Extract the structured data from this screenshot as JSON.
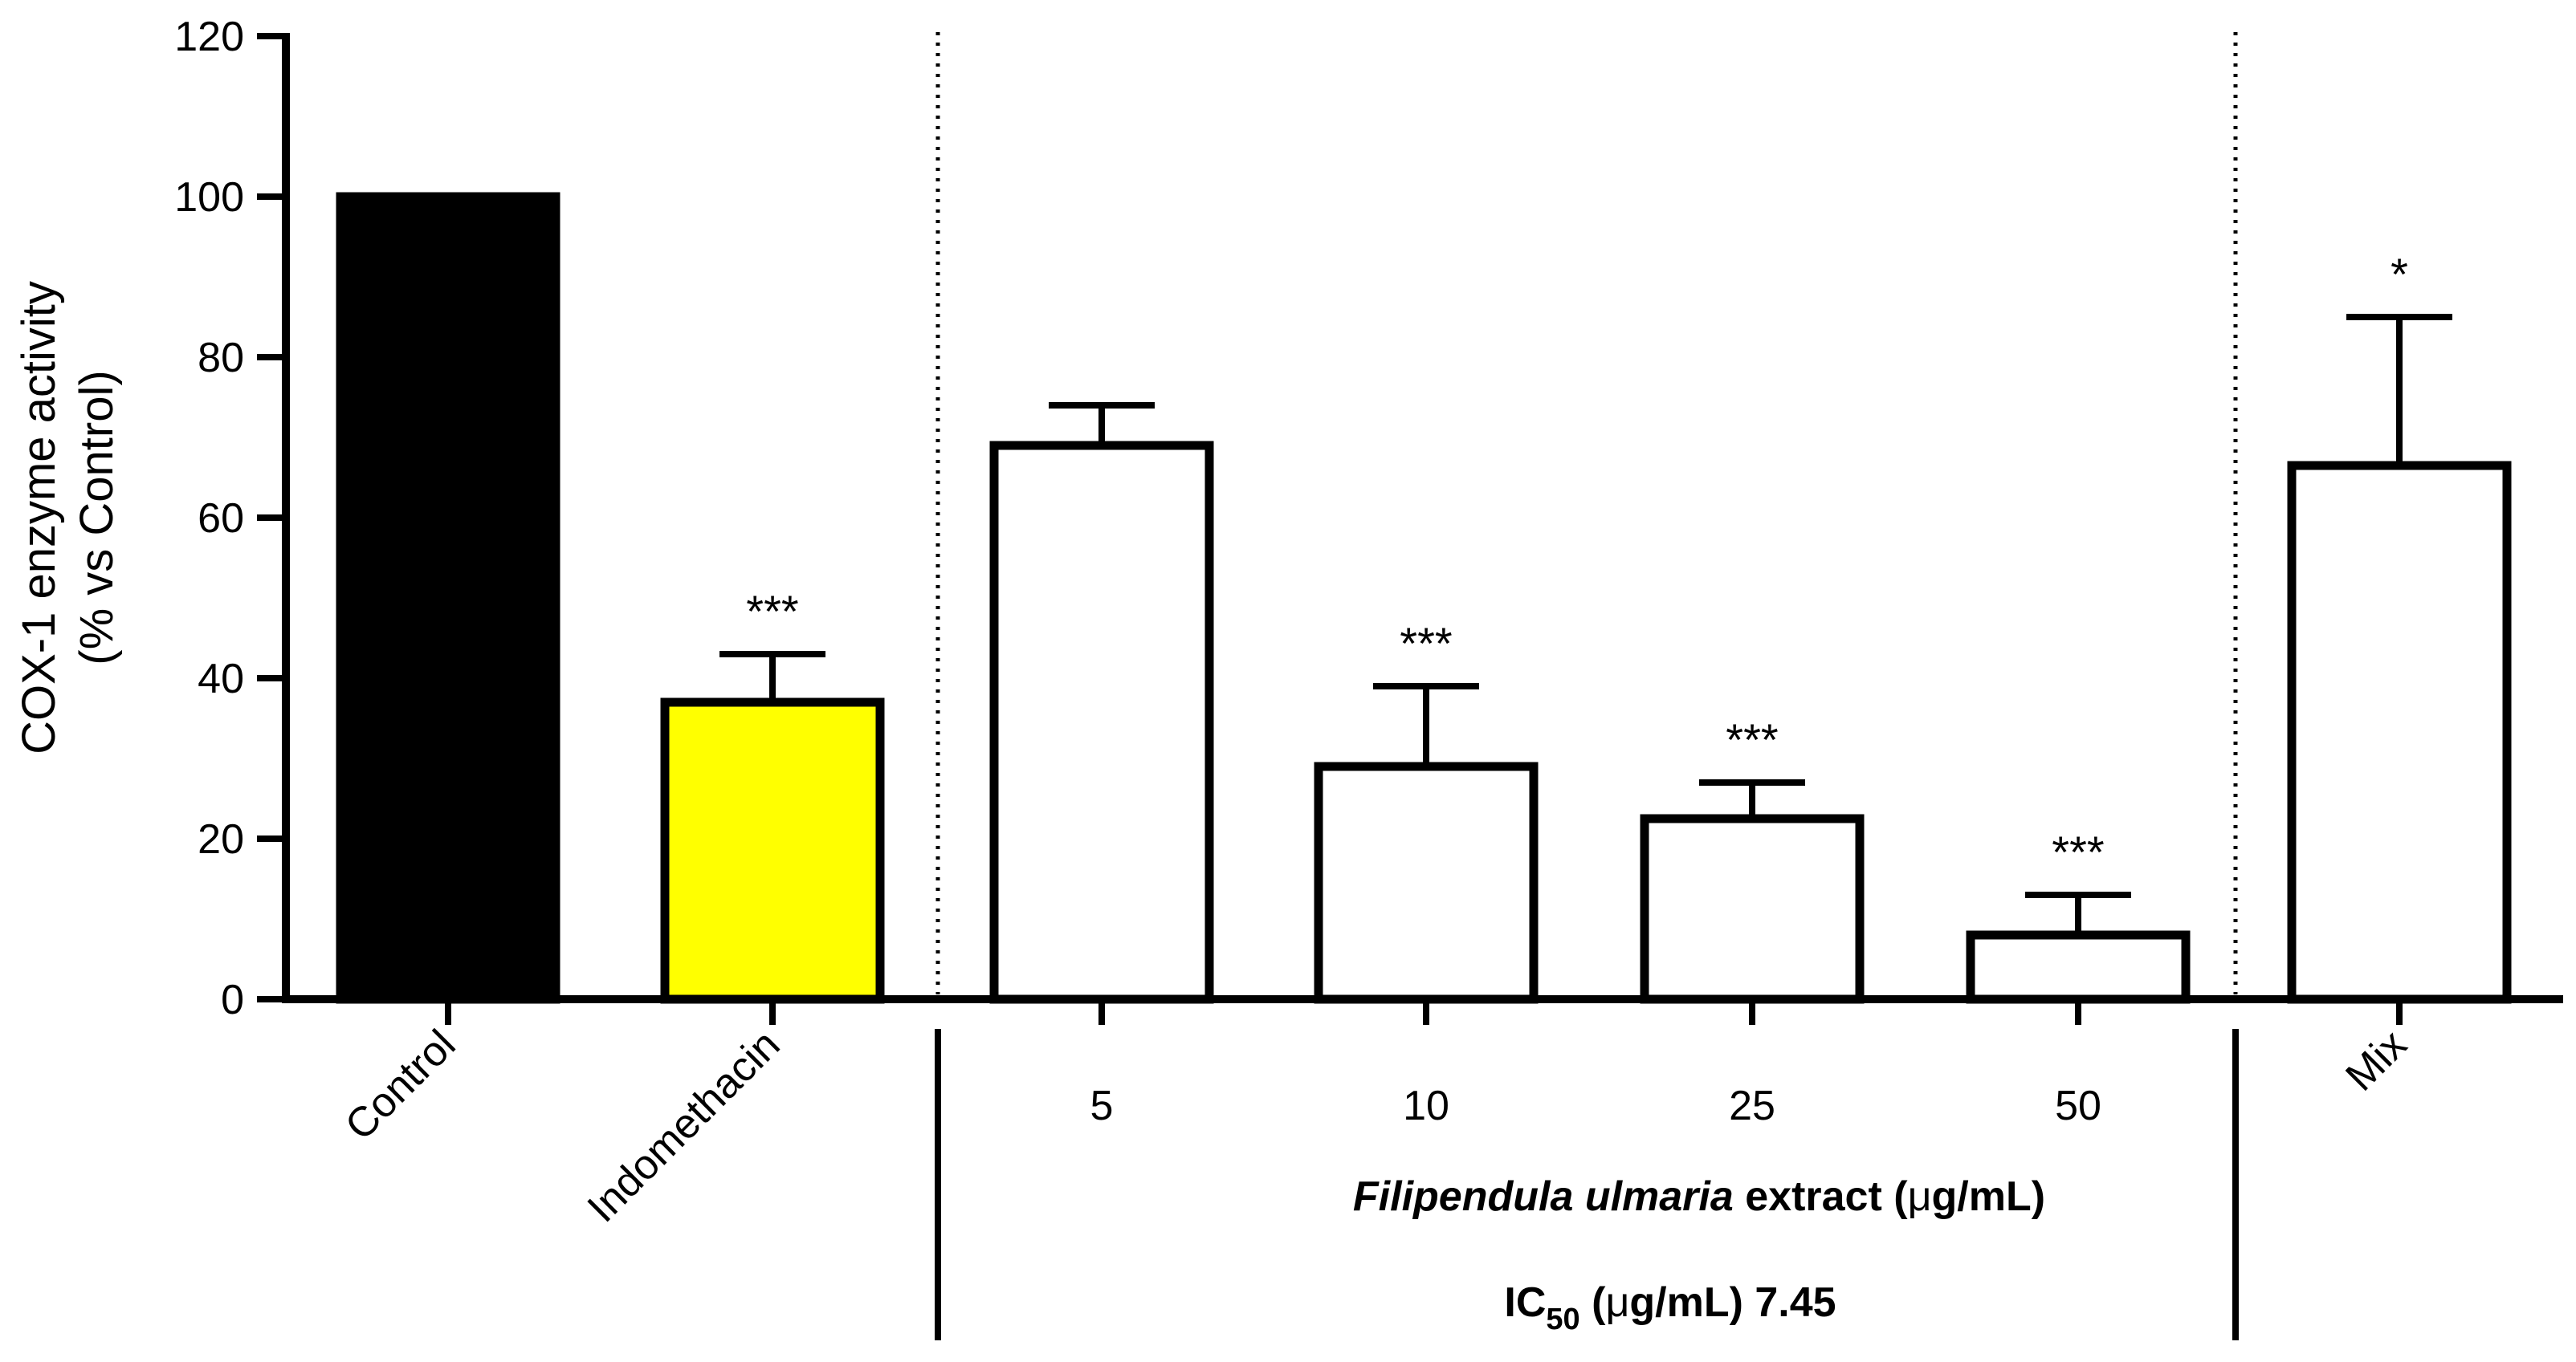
{
  "chart_data": {
    "type": "bar",
    "title": "",
    "ylabel_line1": "COX-1 enzyme activity",
    "ylabel_line2": "(% vs Control)",
    "ylim": [
      0,
      120
    ],
    "yticks": [
      0,
      20,
      40,
      60,
      80,
      100,
      120
    ],
    "grid": false,
    "categories": [
      "Control",
      "Indomethacin",
      "5",
      "10",
      "25",
      "50",
      "Mix"
    ],
    "values": [
      100,
      37,
      69,
      29,
      22.5,
      8,
      66.5
    ],
    "error_upper": [
      100,
      43,
      74,
      39,
      27,
      13,
      85
    ],
    "significance": [
      "",
      "***",
      "",
      "***",
      "***",
      "***",
      "*"
    ],
    "colors": {
      "Control": "#000000",
      "Indomethacin": "#ffff00",
      "extract": "#ffffff",
      "outline": "#000000"
    },
    "group_label": {
      "italic": "Filipendula ulmaria",
      "rest": " extract (",
      "mu": "μ",
      "unit_end": "g/mL)"
    },
    "ic50_label": {
      "prefix": "IC",
      "subscript": "50",
      "middle": " (",
      "mu": "μ",
      "suffix": "g/mL) 7.45"
    }
  }
}
